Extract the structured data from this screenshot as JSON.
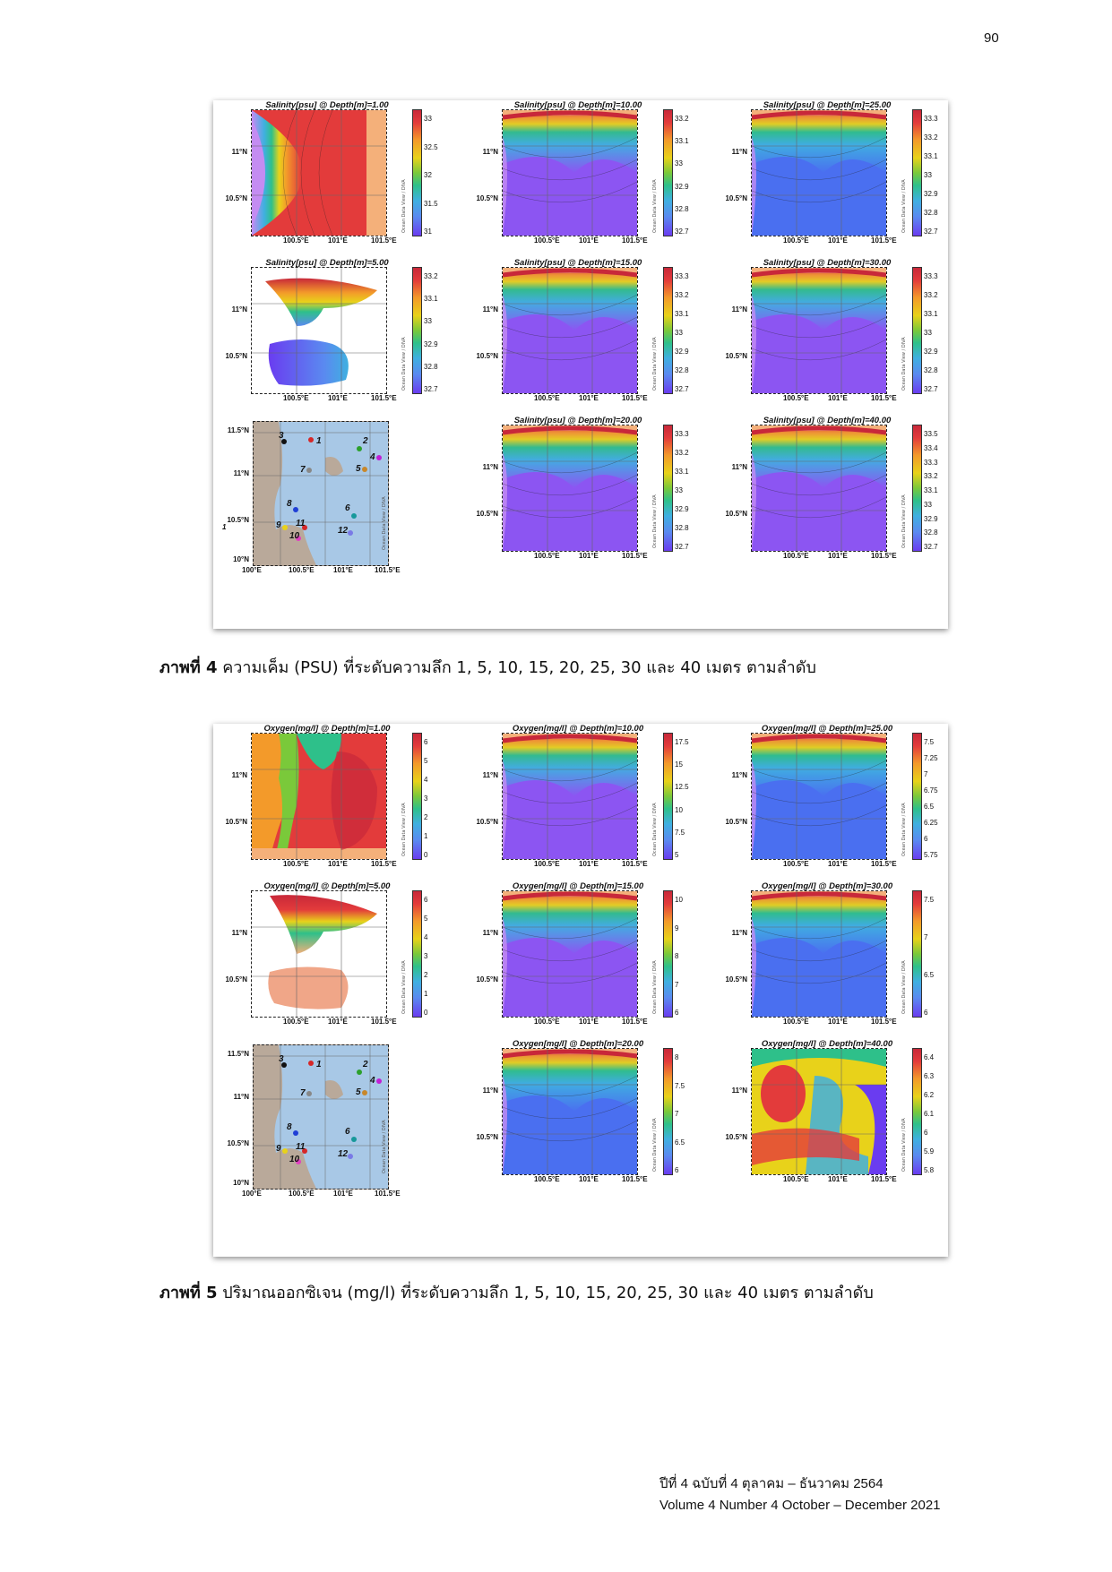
{
  "page_number": "90",
  "figure4": {
    "caption_bold": "ภาพที่ 4",
    "caption_text": " ความเค็ม (PSU) ที่ระดับความลึก 1, 5, 10, 15, 20, 25, 30 และ 40 เมตร ตามลำดับ",
    "panels": [
      {
        "title": "Salinity[psu] @ Depth[m]=1.00",
        "ticks": [
          "33",
          "32.5",
          "32",
          "31.5",
          "31"
        ],
        "style": "red-wide"
      },
      {
        "title": "Salinity[psu] @ Depth[m]=10.00",
        "ticks": [
          "33.2",
          "33.1",
          "33",
          "32.9",
          "32.8",
          "32.7"
        ],
        "style": "purple"
      },
      {
        "title": "Salinity[psu] @ Depth[m]=25.00",
        "ticks": [
          "33.3",
          "33.2",
          "33.1",
          "33",
          "32.9",
          "32.8",
          "32.7"
        ],
        "style": "blue"
      },
      {
        "title": "Salinity[psu] @ Depth[m]=5.00",
        "ticks": [
          "33.2",
          "33.1",
          "33",
          "32.9",
          "32.8",
          "32.7"
        ],
        "style": "islands"
      },
      {
        "title": "Salinity[psu] @ Depth[m]=15.00",
        "ticks": [
          "33.3",
          "33.2",
          "33.1",
          "33",
          "32.9",
          "32.8",
          "32.7"
        ],
        "style": "purple"
      },
      {
        "title": "Salinity[psu] @ Depth[m]=30.00",
        "ticks": [
          "33.3",
          "33.2",
          "33.1",
          "33",
          "32.9",
          "32.8",
          "32.7"
        ],
        "style": "purple"
      },
      {
        "title": "",
        "ticks": [],
        "style": "stations"
      },
      {
        "title": "Salinity[psu] @ Depth[m]=20.00",
        "ticks": [
          "33.3",
          "33.2",
          "33.1",
          "33",
          "32.9",
          "32.8",
          "32.7"
        ],
        "style": "purple"
      },
      {
        "title": "Salinity[psu] @ Depth[m]=40.00",
        "ticks": [
          "33.5",
          "33.4",
          "33.3",
          "33.2",
          "33.1",
          "33",
          "32.9",
          "32.8",
          "32.7"
        ],
        "style": "purple"
      }
    ]
  },
  "figure5": {
    "caption_bold": "ภาพที่ 5",
    "caption_text": " ปริมาณออกซิเจน (mg/l) ที่ระดับความลึก 1, 5, 10, 15, 20, 25, 30 และ 40 เมตร ตามลำดับ",
    "panels": [
      {
        "title": "Oxygen[mg/l] @ Depth[m]=1.00",
        "ticks": [
          "6",
          "5",
          "4",
          "3",
          "2",
          "1",
          "0"
        ],
        "style": "oxy-red"
      },
      {
        "title": "Oxygen[mg/l] @ Depth[m]=10.00",
        "ticks": [
          "17.5",
          "15",
          "12.5",
          "10",
          "7.5",
          "5"
        ],
        "style": "purple"
      },
      {
        "title": "Oxygen[mg/l] @ Depth[m]=25.00",
        "ticks": [
          "7.5",
          "7.25",
          "7",
          "6.75",
          "6.5",
          "6.25",
          "6",
          "5.75"
        ],
        "style": "blue"
      },
      {
        "title": "Oxygen[mg/l] @ Depth[m]=5.00",
        "ticks": [
          "6",
          "5",
          "4",
          "3",
          "2",
          "1",
          "0"
        ],
        "style": "oxy-islands"
      },
      {
        "title": "Oxygen[mg/l] @ Depth[m]=15.00",
        "ticks": [
          "10",
          "9",
          "8",
          "7",
          "6"
        ],
        "style": "purple"
      },
      {
        "title": "Oxygen[mg/l] @ Depth[m]=30.00",
        "ticks": [
          "7.5",
          "7",
          "6.5",
          "6"
        ],
        "style": "blue"
      },
      {
        "title": "",
        "ticks": [],
        "style": "stations"
      },
      {
        "title": "Oxygen[mg/l] @ Depth[m]=20.00",
        "ticks": [
          "8",
          "7.5",
          "7",
          "6.5",
          "6"
        ],
        "style": "blue"
      },
      {
        "title": "Oxygen[mg/l] @ Depth[m]=40.00",
        "ticks": [
          "6.4",
          "6.3",
          "6.2",
          "6.1",
          "6",
          "5.9",
          "5.8"
        ],
        "style": "oxy-40"
      }
    ]
  },
  "axes": {
    "lat_ticks": [
      "11°N",
      "10.5°N"
    ],
    "lon_ticks": [
      "100.5°E",
      "101°E",
      "101.5°E"
    ],
    "station_lat_ticks": [
      "11.5°N",
      "11°N",
      "10.5°N",
      "10°N"
    ],
    "station_lon_ticks": [
      "100°E",
      "100.5°E",
      "101°E",
      "101.5°E"
    ],
    "odv_label": "Ocean Data View / DIVA"
  },
  "stations": [
    {
      "id": "3",
      "color": "#111111"
    },
    {
      "id": "1",
      "color": "#d62728"
    },
    {
      "id": "2",
      "color": "#2ca02c"
    },
    {
      "id": "4",
      "color": "#c21fd6"
    },
    {
      "id": "5",
      "color": "#c8872a"
    },
    {
      "id": "7",
      "color": "#888888"
    },
    {
      "id": "8",
      "color": "#1f3fd6"
    },
    {
      "id": "6",
      "color": "#17989a"
    },
    {
      "id": "9",
      "color": "#e8d21a"
    },
    {
      "id": "11",
      "color": "#d62728"
    },
    {
      "id": "12",
      "color": "#7a7ae6"
    },
    {
      "id": "10",
      "color": "#e040c0"
    }
  ],
  "stray_label": "1",
  "footer": {
    "line1": "ปีที่ 4 ฉบับที่ 4 ตุลาคม – ธันวาคม 2564",
    "line2": "Volume 4 Number 4 October – December 2021"
  }
}
